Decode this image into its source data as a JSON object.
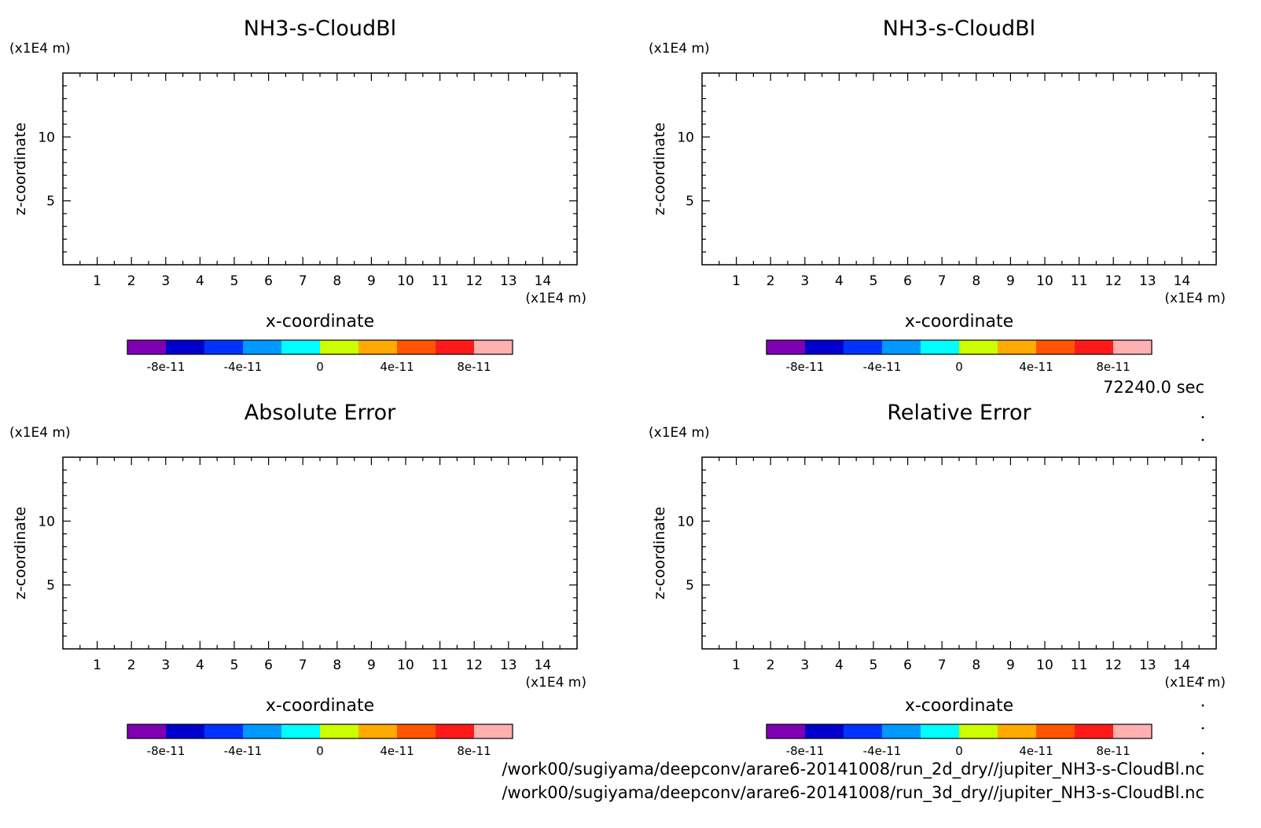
{
  "time_label": "72240.0 sec",
  "files": [
    "/work00/sugiyama/deepconv/arare6-20141008/run_2d_dry//jupiter_NH3-s-CloudBl.nc",
    "/work00/sugiyama/deepconv/arare6-20141008/run_3d_dry//jupiter_NH3-s-CloudBl.nc"
  ],
  "colorbar": {
    "colors": [
      "#7f00b2",
      "#0000cc",
      "#0033ff",
      "#0099ff",
      "#00ffff",
      "#ccff00",
      "#ffaa00",
      "#ff5500",
      "#ff1a1a",
      "#ffb0b0"
    ],
    "levels": [
      -1e-10,
      -8e-11,
      -6e-11,
      -4e-11,
      -2e-11,
      0,
      2e-11,
      4e-11,
      6e-11,
      8e-11,
      1e-10
    ],
    "tick_labels": [
      "-8e-11",
      "-4e-11",
      "0",
      "4e-11",
      "8e-11"
    ]
  },
  "chart_data": [
    {
      "type": "heatmap",
      "title": "NH3-s-CloudBl",
      "xlabel": "x-coordinate",
      "ylabel": "z-coordinate",
      "x_unit": "(x1E4 m)",
      "y_unit": "(x1E4 m)",
      "xlim": [
        0,
        15
      ],
      "ylim": [
        0,
        15
      ],
      "x_ticks": [
        1,
        2,
        3,
        4,
        5,
        6,
        7,
        8,
        9,
        10,
        11,
        12,
        13,
        14
      ],
      "y_ticks": [
        5,
        10
      ]
    },
    {
      "type": "heatmap",
      "title": "NH3-s-CloudBl",
      "xlabel": "x-coordinate",
      "ylabel": "z-coordinate",
      "x_unit": "(x1E4 m)",
      "y_unit": "(x1E4 m)",
      "xlim": [
        0,
        15
      ],
      "ylim": [
        0,
        15
      ],
      "x_ticks": [
        1,
        2,
        3,
        4,
        5,
        6,
        7,
        8,
        9,
        10,
        11,
        12,
        13,
        14
      ],
      "y_ticks": [
        5,
        10
      ]
    },
    {
      "type": "heatmap",
      "title": "Absolute Error",
      "xlabel": "x-coordinate",
      "ylabel": "z-coordinate",
      "x_unit": "(x1E4 m)",
      "y_unit": "(x1E4 m)",
      "xlim": [
        0,
        15
      ],
      "ylim": [
        0,
        15
      ],
      "x_ticks": [
        1,
        2,
        3,
        4,
        5,
        6,
        7,
        8,
        9,
        10,
        11,
        12,
        13,
        14
      ],
      "y_ticks": [
        5,
        10
      ]
    },
    {
      "type": "heatmap",
      "title": "Relative Error",
      "xlabel": "x-coordinate",
      "ylabel": "z-coordinate",
      "x_unit": "(x1E4 m)",
      "y_unit": "(x1E4 m)",
      "xlim": [
        0,
        15
      ],
      "ylim": [
        0,
        15
      ],
      "x_ticks": [
        1,
        2,
        3,
        4,
        5,
        6,
        7,
        8,
        9,
        10,
        11,
        12,
        13,
        14
      ],
      "y_ticks": [
        5,
        10
      ]
    }
  ]
}
